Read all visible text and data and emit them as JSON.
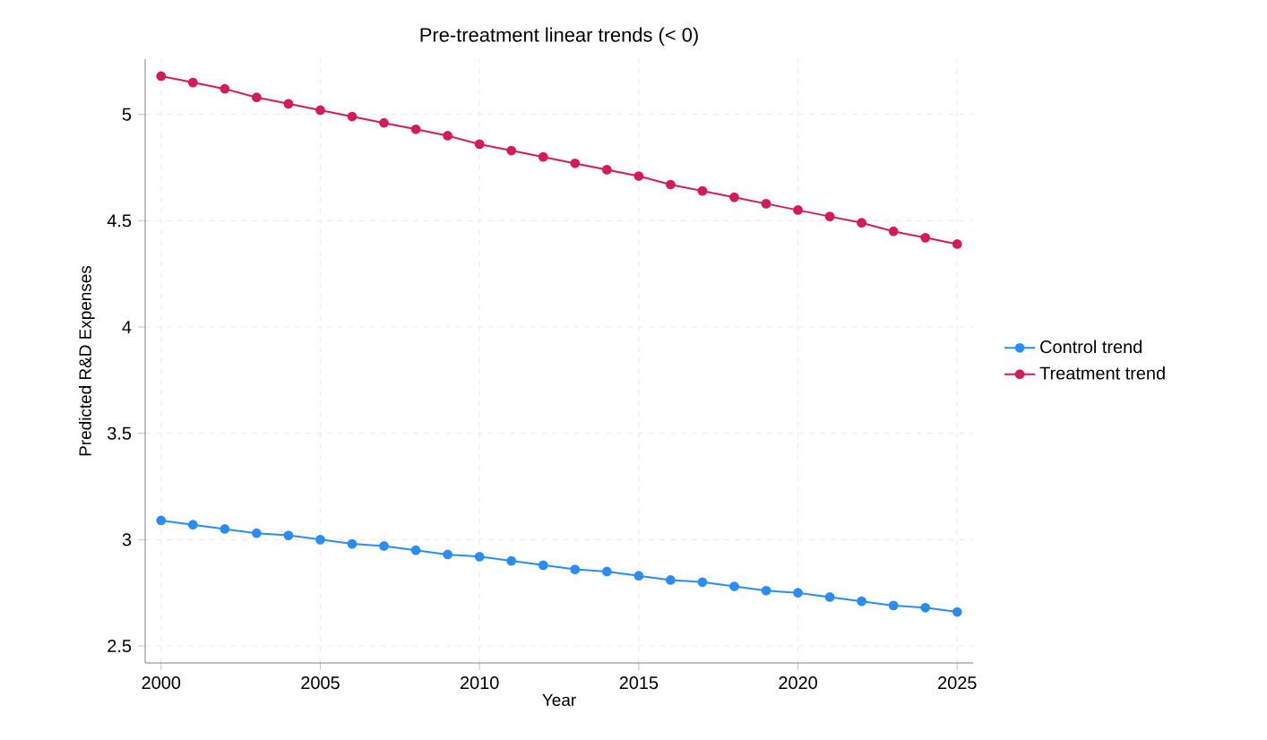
{
  "chart_data": {
    "type": "line",
    "title": "Pre-treatment linear trends (< 0)",
    "xlabel": "Year",
    "ylabel": "Predicted R&D Expenses",
    "x": [
      2000,
      2001,
      2002,
      2003,
      2004,
      2005,
      2006,
      2007,
      2008,
      2009,
      2010,
      2011,
      2012,
      2013,
      2014,
      2015,
      2016,
      2017,
      2018,
      2019,
      2020,
      2021,
      2022,
      2023,
      2024,
      2025
    ],
    "series": [
      {
        "name": "Control trend",
        "color": "#2a8cf5",
        "values": [
          3.09,
          3.07,
          3.05,
          3.03,
          3.02,
          3.0,
          2.98,
          2.97,
          2.95,
          2.93,
          2.92,
          2.9,
          2.88,
          2.86,
          2.85,
          2.83,
          2.81,
          2.8,
          2.78,
          2.76,
          2.75,
          2.73,
          2.71,
          2.69,
          2.68,
          2.66
        ]
      },
      {
        "name": "Treatment trend",
        "color": "#d41a5a",
        "values": [
          5.18,
          5.15,
          5.12,
          5.08,
          5.05,
          5.02,
          4.99,
          4.96,
          4.93,
          4.9,
          4.86,
          4.83,
          4.8,
          4.77,
          4.74,
          4.71,
          4.67,
          4.64,
          4.61,
          4.58,
          4.55,
          4.52,
          4.49,
          4.45,
          4.42,
          4.39
        ]
      }
    ],
    "xlim": [
      1999.5,
      2025.5
    ],
    "ylim": [
      2.42,
      5.26
    ],
    "xticks": [
      2000,
      2005,
      2010,
      2015,
      2020,
      2025
    ],
    "yticks": [
      2.5,
      3,
      3.5,
      4,
      4.5,
      5
    ],
    "grid": true,
    "legend": "right",
    "marker": "circle",
    "line_style": "solid"
  }
}
